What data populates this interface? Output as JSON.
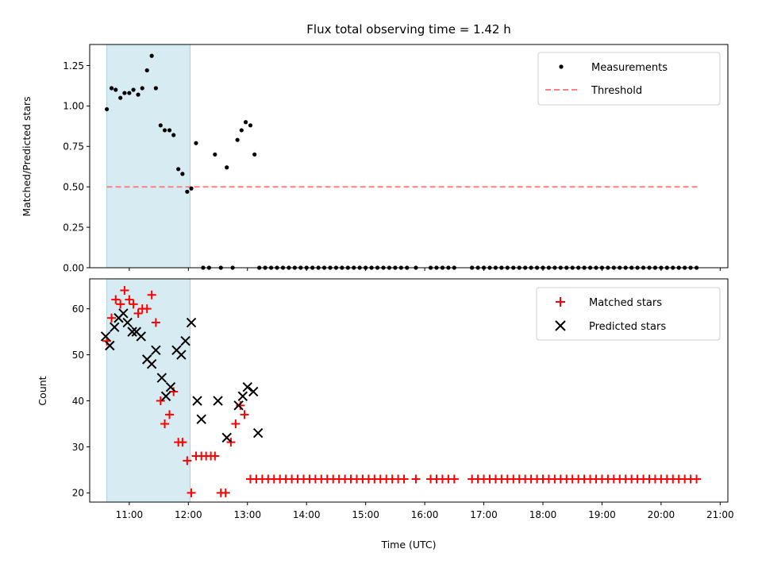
{
  "chart_data": {
    "type": "scatter",
    "title": "Flux total observing time = 1.42 h",
    "xlabel": "Time (UTC)",
    "x_unit": "hours UTC",
    "xlim": [
      10.33,
      21.13
    ],
    "x_ticks": [
      {
        "v": 11,
        "label": "11:00"
      },
      {
        "v": 12,
        "label": "12:00"
      },
      {
        "v": 13,
        "label": "13:00"
      },
      {
        "v": 14,
        "label": "14:00"
      },
      {
        "v": 15,
        "label": "15:00"
      },
      {
        "v": 16,
        "label": "16:00"
      },
      {
        "v": 17,
        "label": "17:00"
      },
      {
        "v": 18,
        "label": "18:00"
      },
      {
        "v": 19,
        "label": "19:00"
      },
      {
        "v": 20,
        "label": "20:00"
      },
      {
        "v": 21,
        "label": "21:00"
      }
    ],
    "shaded_span": {
      "x0": 10.62,
      "x1": 12.03,
      "color": "#add8e6"
    },
    "top": {
      "ylabel": "Matched/Predicted stars",
      "ylim": [
        0,
        1.38
      ],
      "y_ticks": [
        "0.00",
        "0.25",
        "0.50",
        "0.75",
        "1.00",
        "1.25"
      ],
      "threshold": {
        "y": 0.5,
        "x0": 10.62,
        "x1": 20.65,
        "color": "#ff8080"
      },
      "legend": [
        {
          "label": "Measurements",
          "marker": "dot",
          "color": "#000000"
        },
        {
          "label": "Threshold",
          "marker": "dash",
          "color": "#ff8080"
        }
      ],
      "measurements": [
        [
          10.62,
          0.98
        ],
        [
          10.7,
          1.11
        ],
        [
          10.77,
          1.1
        ],
        [
          10.85,
          1.05
        ],
        [
          10.92,
          1.08
        ],
        [
          11.0,
          1.08
        ],
        [
          11.07,
          1.1
        ],
        [
          11.15,
          1.07
        ],
        [
          11.22,
          1.11
        ],
        [
          11.3,
          1.22
        ],
        [
          11.38,
          1.31
        ],
        [
          11.45,
          1.11
        ],
        [
          11.53,
          0.88
        ],
        [
          11.6,
          0.85
        ],
        [
          11.68,
          0.85
        ],
        [
          11.75,
          0.82
        ],
        [
          11.83,
          0.61
        ],
        [
          11.9,
          0.58
        ],
        [
          11.98,
          0.47
        ],
        [
          12.05,
          0.49
        ],
        [
          12.13,
          0.77
        ],
        [
          12.25,
          0.0
        ],
        [
          12.35,
          0.0
        ],
        [
          12.45,
          0.7
        ],
        [
          12.55,
          0.0
        ],
        [
          12.65,
          0.62
        ],
        [
          12.75,
          0.0
        ],
        [
          12.83,
          0.79
        ],
        [
          12.9,
          0.85
        ],
        [
          12.97,
          0.9
        ],
        [
          13.05,
          0.88
        ],
        [
          13.12,
          0.7
        ],
        [
          13.2,
          0.0
        ],
        [
          13.3,
          0.0
        ],
        [
          13.4,
          0.0
        ],
        [
          13.5,
          0.0
        ],
        [
          13.6,
          0.0
        ],
        [
          13.7,
          0.0
        ],
        [
          13.8,
          0.0
        ],
        [
          13.9,
          0.0
        ],
        [
          14.0,
          0.0
        ],
        [
          14.1,
          0.0
        ],
        [
          14.2,
          0.0
        ],
        [
          14.3,
          0.0
        ],
        [
          14.4,
          0.0
        ],
        [
          14.5,
          0.0
        ],
        [
          14.6,
          0.0
        ],
        [
          14.7,
          0.0
        ],
        [
          14.8,
          0.0
        ],
        [
          14.9,
          0.0
        ],
        [
          15.0,
          0.0
        ],
        [
          15.1,
          0.0
        ],
        [
          15.2,
          0.0
        ],
        [
          15.3,
          0.0
        ],
        [
          15.4,
          0.0
        ],
        [
          15.5,
          0.0
        ],
        [
          15.6,
          0.0
        ],
        [
          15.7,
          0.0
        ],
        [
          15.85,
          0.0
        ],
        [
          16.1,
          0.0
        ],
        [
          16.2,
          0.0
        ],
        [
          16.3,
          0.0
        ],
        [
          16.4,
          0.0
        ],
        [
          16.5,
          0.0
        ],
        [
          16.8,
          0.0
        ],
        [
          16.9,
          0.0
        ],
        [
          17.0,
          0.0
        ],
        [
          17.1,
          0.0
        ],
        [
          17.2,
          0.0
        ],
        [
          17.3,
          0.0
        ],
        [
          17.4,
          0.0
        ],
        [
          17.5,
          0.0
        ],
        [
          17.6,
          0.0
        ],
        [
          17.7,
          0.0
        ],
        [
          17.8,
          0.0
        ],
        [
          17.9,
          0.0
        ],
        [
          18.0,
          0.0
        ],
        [
          18.1,
          0.0
        ],
        [
          18.2,
          0.0
        ],
        [
          18.3,
          0.0
        ],
        [
          18.4,
          0.0
        ],
        [
          18.5,
          0.0
        ],
        [
          18.6,
          0.0
        ],
        [
          18.7,
          0.0
        ],
        [
          18.8,
          0.0
        ],
        [
          18.9,
          0.0
        ],
        [
          19.0,
          0.0
        ],
        [
          19.1,
          0.0
        ],
        [
          19.2,
          0.0
        ],
        [
          19.3,
          0.0
        ],
        [
          19.4,
          0.0
        ],
        [
          19.5,
          0.0
        ],
        [
          19.6,
          0.0
        ],
        [
          19.7,
          0.0
        ],
        [
          19.8,
          0.0
        ],
        [
          19.9,
          0.0
        ],
        [
          20.0,
          0.0
        ],
        [
          20.1,
          0.0
        ],
        [
          20.2,
          0.0
        ],
        [
          20.3,
          0.0
        ],
        [
          20.4,
          0.0
        ],
        [
          20.5,
          0.0
        ],
        [
          20.6,
          0.0
        ]
      ]
    },
    "bottom": {
      "ylabel": "Count",
      "ylim": [
        18,
        66.5
      ],
      "y_ticks": [
        "20",
        "30",
        "40",
        "50",
        "60"
      ],
      "legend": [
        {
          "label": "Matched stars",
          "marker": "plus",
          "color": "#ff0000"
        },
        {
          "label": "Predicted stars",
          "marker": "x",
          "color": "#000000"
        }
      ],
      "matched_stars": [
        [
          10.62,
          53
        ],
        [
          10.7,
          58
        ],
        [
          10.77,
          62
        ],
        [
          10.85,
          61
        ],
        [
          10.92,
          64
        ],
        [
          11.0,
          62
        ],
        [
          11.07,
          61
        ],
        [
          11.15,
          59
        ],
        [
          11.22,
          60
        ],
        [
          11.3,
          60
        ],
        [
          11.38,
          63
        ],
        [
          11.45,
          57
        ],
        [
          11.53,
          40
        ],
        [
          11.6,
          35
        ],
        [
          11.68,
          37
        ],
        [
          11.75,
          42
        ],
        [
          11.83,
          31
        ],
        [
          11.9,
          31
        ],
        [
          11.98,
          27
        ],
        [
          12.05,
          20
        ],
        [
          12.13,
          28
        ],
        [
          12.22,
          28
        ],
        [
          12.3,
          28
        ],
        [
          12.38,
          28
        ],
        [
          12.45,
          28
        ],
        [
          12.55,
          20
        ],
        [
          12.63,
          20
        ],
        [
          12.72,
          31
        ],
        [
          12.8,
          35
        ],
        [
          12.88,
          39
        ],
        [
          12.95,
          37
        ],
        [
          13.05,
          23
        ],
        [
          13.15,
          23
        ],
        [
          13.25,
          23
        ],
        [
          13.35,
          23
        ],
        [
          13.45,
          23
        ],
        [
          13.55,
          23
        ],
        [
          13.65,
          23
        ],
        [
          13.75,
          23
        ],
        [
          13.85,
          23
        ],
        [
          13.95,
          23
        ],
        [
          14.05,
          23
        ],
        [
          14.15,
          23
        ],
        [
          14.25,
          23
        ],
        [
          14.35,
          23
        ],
        [
          14.45,
          23
        ],
        [
          14.55,
          23
        ],
        [
          14.65,
          23
        ],
        [
          14.75,
          23
        ],
        [
          14.85,
          23
        ],
        [
          14.95,
          23
        ],
        [
          15.05,
          23
        ],
        [
          15.15,
          23
        ],
        [
          15.25,
          23
        ],
        [
          15.35,
          23
        ],
        [
          15.45,
          23
        ],
        [
          15.55,
          23
        ],
        [
          15.65,
          23
        ],
        [
          15.85,
          23
        ],
        [
          16.1,
          23
        ],
        [
          16.2,
          23
        ],
        [
          16.3,
          23
        ],
        [
          16.4,
          23
        ],
        [
          16.5,
          23
        ],
        [
          16.8,
          23
        ],
        [
          16.9,
          23
        ],
        [
          17.0,
          23
        ],
        [
          17.1,
          23
        ],
        [
          17.2,
          23
        ],
        [
          17.3,
          23
        ],
        [
          17.4,
          23
        ],
        [
          17.5,
          23
        ],
        [
          17.6,
          23
        ],
        [
          17.7,
          23
        ],
        [
          17.8,
          23
        ],
        [
          17.9,
          23
        ],
        [
          18.0,
          23
        ],
        [
          18.1,
          23
        ],
        [
          18.2,
          23
        ],
        [
          18.3,
          23
        ],
        [
          18.4,
          23
        ],
        [
          18.5,
          23
        ],
        [
          18.6,
          23
        ],
        [
          18.7,
          23
        ],
        [
          18.8,
          23
        ],
        [
          18.9,
          23
        ],
        [
          19.0,
          23
        ],
        [
          19.1,
          23
        ],
        [
          19.2,
          23
        ],
        [
          19.3,
          23
        ],
        [
          19.4,
          23
        ],
        [
          19.5,
          23
        ],
        [
          19.6,
          23
        ],
        [
          19.7,
          23
        ],
        [
          19.8,
          23
        ],
        [
          19.9,
          23
        ],
        [
          20.0,
          23
        ],
        [
          20.1,
          23
        ],
        [
          20.2,
          23
        ],
        [
          20.3,
          23
        ],
        [
          20.4,
          23
        ],
        [
          20.5,
          23
        ],
        [
          20.6,
          23
        ]
      ],
      "predicted_stars": [
        [
          10.6,
          54
        ],
        [
          10.67,
          52
        ],
        [
          10.75,
          56
        ],
        [
          10.82,
          58
        ],
        [
          10.9,
          59
        ],
        [
          10.97,
          57
        ],
        [
          11.05,
          55
        ],
        [
          11.12,
          55
        ],
        [
          11.2,
          54
        ],
        [
          11.3,
          49
        ],
        [
          11.38,
          48
        ],
        [
          11.45,
          51
        ],
        [
          11.55,
          45
        ],
        [
          11.62,
          41
        ],
        [
          11.7,
          43
        ],
        [
          11.8,
          51
        ],
        [
          11.88,
          50
        ],
        [
          11.95,
          53
        ],
        [
          12.05,
          57
        ],
        [
          12.15,
          40
        ],
        [
          12.22,
          36
        ],
        [
          12.5,
          40
        ],
        [
          12.65,
          32
        ],
        [
          12.85,
          39
        ],
        [
          12.92,
          41
        ],
        [
          13.0,
          43
        ],
        [
          13.1,
          42
        ],
        [
          13.18,
          33
        ]
      ]
    }
  }
}
